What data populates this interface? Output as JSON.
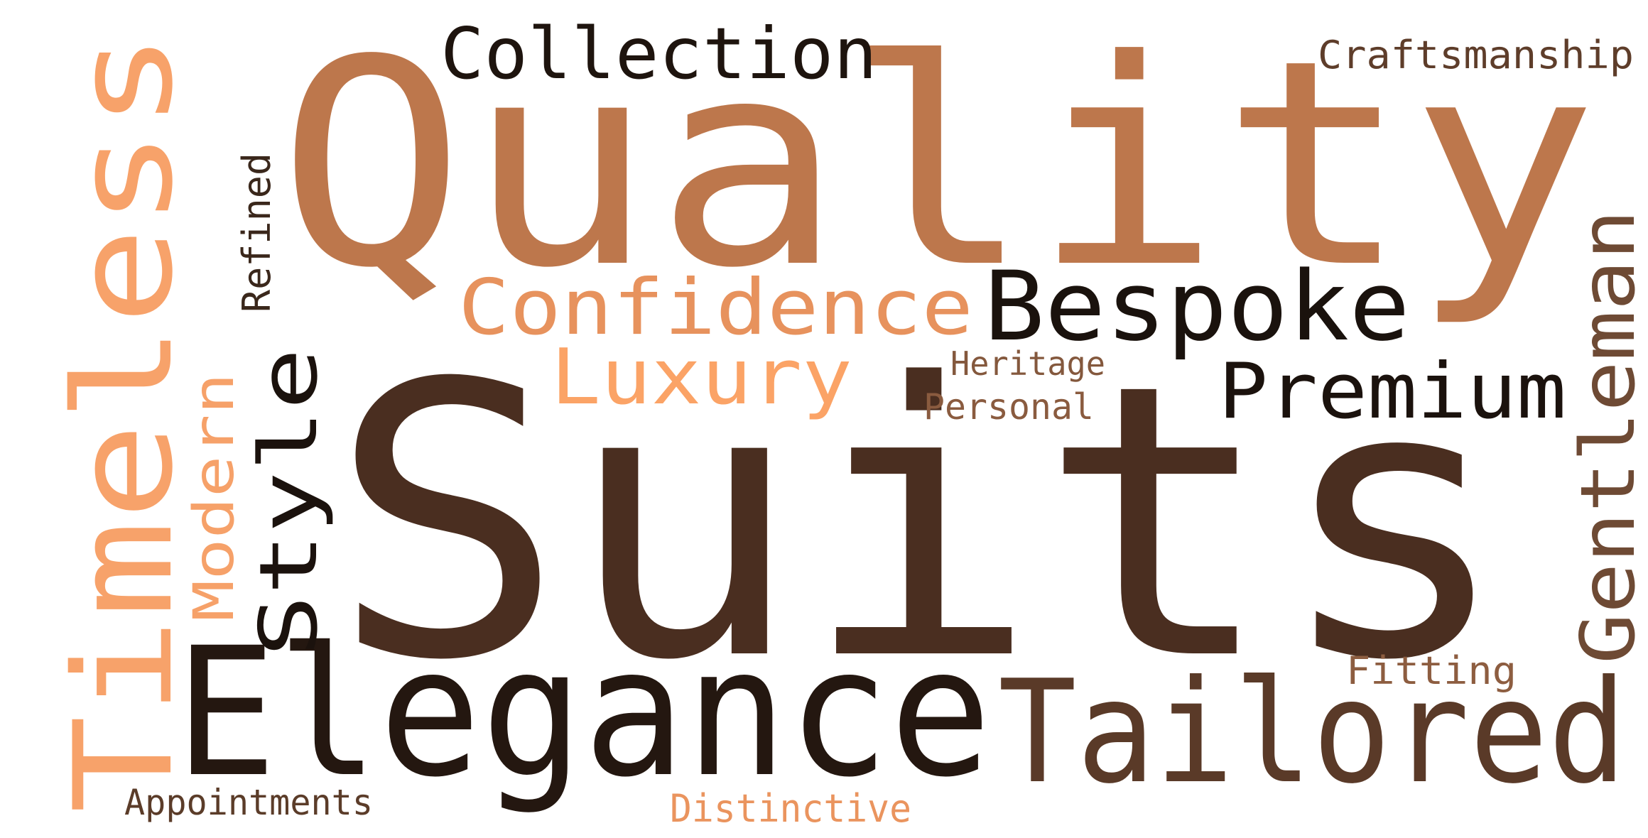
{
  "word_cloud": {
    "words": [
      {
        "text": "Suits",
        "color": "#4a2e20"
      },
      {
        "text": "Quality",
        "color": "#bd774c"
      },
      {
        "text": "Elegance",
        "color": "#241710"
      },
      {
        "text": "Tailored",
        "color": "#5a3a28"
      },
      {
        "text": "Timeless",
        "color": "#f7a26a"
      },
      {
        "text": "Collection",
        "color": "#1e140e"
      },
      {
        "text": "Bespoke",
        "color": "#1a120d"
      },
      {
        "text": "Confidence",
        "color": "#e7925d"
      },
      {
        "text": "Luxury",
        "color": "#fba366"
      },
      {
        "text": "Premium",
        "color": "#1b120d"
      },
      {
        "text": "Style",
        "color": "#1b120d"
      },
      {
        "text": "Gentleman",
        "color": "#6e4a34"
      },
      {
        "text": "Modern",
        "color": "#f6a169"
      },
      {
        "text": "Craftsmanship",
        "color": "#5e3d2a"
      },
      {
        "text": "Refined",
        "color": "#3a271b"
      },
      {
        "text": "Heritage",
        "color": "#84583d"
      },
      {
        "text": "Personal",
        "color": "#8a5b3f"
      },
      {
        "text": "Fitting",
        "color": "#8d5d40"
      },
      {
        "text": "Appointments",
        "color": "#5b3c29"
      },
      {
        "text": "Distinctive",
        "color": "#ea945e"
      }
    ]
  }
}
